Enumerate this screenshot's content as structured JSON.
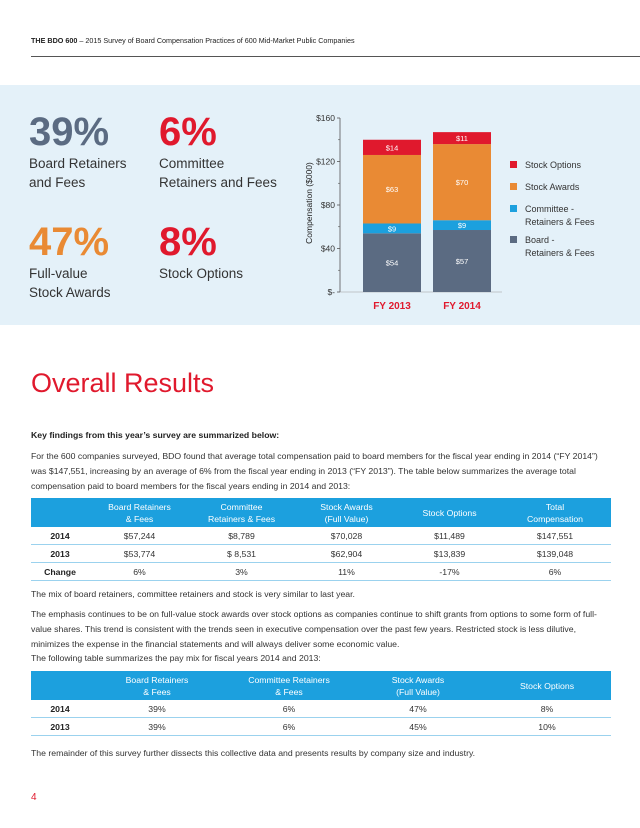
{
  "header": {
    "brand": "THE BDO 600",
    "subtitle": " – 2015 Survey of Board Compensation Practices of 600 Mid-Market Public Companies"
  },
  "stats": [
    {
      "pct": "39%",
      "label1": "Board Retainers",
      "label2": "and Fees",
      "color": "#5b6b82"
    },
    {
      "pct": "6%",
      "label1": "Committee",
      "label2": "Retainers and Fees",
      "color": "#e0192d"
    },
    {
      "pct": "47%",
      "label1": "Full-value",
      "label2": "Stock Awards",
      "color": "#e98a34"
    },
    {
      "pct": "8%",
      "label1": "Stock Options",
      "label2": "",
      "color": "#e0192d"
    }
  ],
  "chart_data": {
    "type": "bar",
    "stacked": true,
    "categories": [
      "FY 2013",
      "FY 2014"
    ],
    "series": [
      {
        "name": "Board - Retainers & Fees",
        "values": [
          54,
          57
        ],
        "labels": [
          "$54",
          "$57"
        ],
        "color": "#5b6b82"
      },
      {
        "name": "Committee - Retainers & Fees",
        "values": [
          9,
          9
        ],
        "labels": [
          "$9",
          "$9"
        ],
        "color": "#1ca0de"
      },
      {
        "name": "Stock Awards",
        "values": [
          63,
          70
        ],
        "labels": [
          "$63",
          "$70"
        ],
        "color": "#e98a34"
      },
      {
        "name": "Stock Options",
        "values": [
          14,
          11
        ],
        "labels": [
          "$14",
          "$11"
        ],
        "color": "#e0192d"
      }
    ],
    "ylabel": "Compensation ($000)",
    "ylim": [
      0,
      160
    ],
    "yticks": [
      "$-",
      "$40",
      "$80",
      "$120",
      "$160"
    ],
    "legend": [
      {
        "lines": [
          "Stock Options"
        ],
        "color": "#e0192d"
      },
      {
        "lines": [
          "Stock Awards"
        ],
        "color": "#e98a34"
      },
      {
        "lines": [
          "Committee -",
          "Retainers & Fees"
        ],
        "color": "#1ca0de"
      },
      {
        "lines": [
          "Board -",
          "Retainers & Fees"
        ],
        "color": "#5b6b82"
      }
    ],
    "legend_position": "right"
  },
  "title": "Overall Results",
  "key_findings": "Key findings from this year’s survey are summarized below:",
  "para1": "For the 600 companies surveyed, BDO found that average total compensation paid to board members for the fiscal year ending in 2014 (“FY 2014”) was $147,551, increasing by an average of 6% from the fiscal year ending in 2013 (“FY 2013”). The table below summarizes the average total compensation paid to board members for the fiscal years ending in 2014 and 2013:",
  "table1": {
    "headers": [
      {
        "l1": "",
        "l2": ""
      },
      {
        "l1": "Board Retainers",
        "l2": "& Fees"
      },
      {
        "l1": "Committee",
        "l2": "Retainers & Fees"
      },
      {
        "l1": "Stock Awards",
        "l2": "(Full Value)"
      },
      {
        "l1": "Stock Options",
        "l2": ""
      },
      {
        "l1": "Total",
        "l2": "Compensation"
      }
    ],
    "rows": [
      [
        "2014",
        "$57,244",
        "$8,789",
        "$70,028",
        "$11,489",
        "$147,551"
      ],
      [
        "2013",
        "$53,774",
        "$ 8,531",
        "$62,904",
        "$13,839",
        "$139,048"
      ],
      [
        "Change",
        "6%",
        "3%",
        "11%",
        "-17%",
        "6%"
      ]
    ]
  },
  "para2": "The mix of board retainers, committee retainers and stock is very similar to last year.",
  "para3": "The emphasis continues to be on full-value stock awards over stock options as companies continue to shift grants from options to some form of full-value shares. This trend is consistent with the trends seen in executive compensation over the past few years. Restricted stock is less dilutive, minimizes the expense in the financial statements and will always deliver some economic value.",
  "para4": "The following table summarizes the pay mix for fiscal years 2014 and 2013:",
  "table2": {
    "headers": [
      {
        "l1": "",
        "l2": ""
      },
      {
        "l1": "Board Retainers",
        "l2": "& Fees"
      },
      {
        "l1": "Committee Retainers",
        "l2": "& Fees"
      },
      {
        "l1": "Stock Awards",
        "l2": "(Full Value)"
      },
      {
        "l1": "Stock Options",
        "l2": ""
      }
    ],
    "rows": [
      [
        "2014",
        "39%",
        "6%",
        "47%",
        "8%"
      ],
      [
        "2013",
        "39%",
        "6%",
        "45%",
        "10%"
      ]
    ]
  },
  "para5": "The remainder of this survey further dissects this collective data and presents results by company size and industry.",
  "page_number": "4"
}
